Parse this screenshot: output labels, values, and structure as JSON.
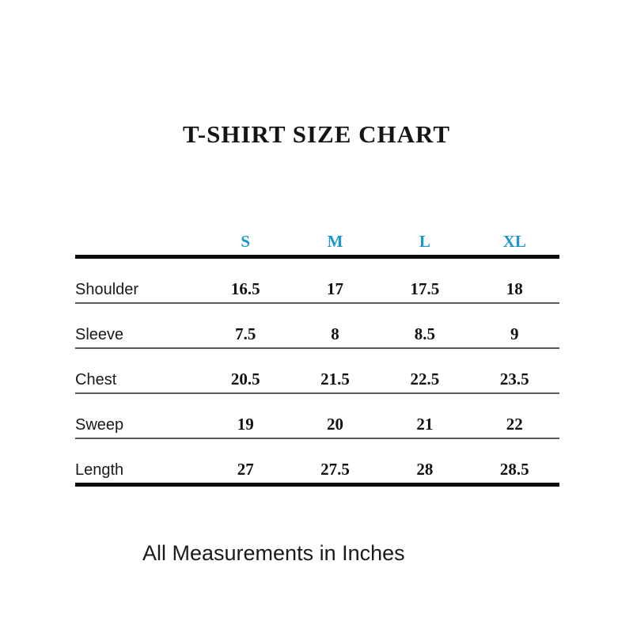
{
  "title": "T-SHIRT SIZE CHART",
  "footer_note": "All Measurements in Inches",
  "colors": {
    "size_header_blue": "#1b96d2",
    "text_black": "#111111",
    "thick_rule": "#0d0d0d",
    "thin_rule": "#595959",
    "background": "#ffffff"
  },
  "table": {
    "size_headers": [
      "S",
      "M",
      "L",
      "XL"
    ],
    "rows": [
      {
        "label": "Shoulder",
        "values": [
          "16.5",
          "17",
          "17.5",
          "18"
        ]
      },
      {
        "label": "Sleeve",
        "values": [
          "7.5",
          "8",
          "8.5",
          "9"
        ]
      },
      {
        "label": "Chest",
        "values": [
          "20.5",
          "21.5",
          "22.5",
          "23.5"
        ]
      },
      {
        "label": "Sweep",
        "values": [
          "19",
          "20",
          "21",
          "22"
        ]
      },
      {
        "label": "Length",
        "values": [
          "27",
          "27.5",
          "28",
          "28.5"
        ]
      }
    ]
  },
  "chart_data": {
    "type": "table",
    "title": "T-SHIRT SIZE CHART",
    "columns": [
      "",
      "S",
      "M",
      "L",
      "XL"
    ],
    "rows": [
      [
        "Shoulder",
        16.5,
        17,
        17.5,
        18
      ],
      [
        "Sleeve",
        7.5,
        8,
        8.5,
        9
      ],
      [
        "Chest",
        20.5,
        21.5,
        22.5,
        23.5
      ],
      [
        "Sweep",
        19,
        20,
        21,
        22
      ],
      [
        "Length",
        27,
        27.5,
        28,
        28.5
      ]
    ],
    "note": "All Measurements in Inches",
    "units": "inches",
    "layout_hints": {
      "header_text_color": "#1b96d2",
      "thick_rules": [
        "below header row",
        "below last row"
      ],
      "thin_rules": "below each data row",
      "grid": "horizontal rules only"
    }
  }
}
